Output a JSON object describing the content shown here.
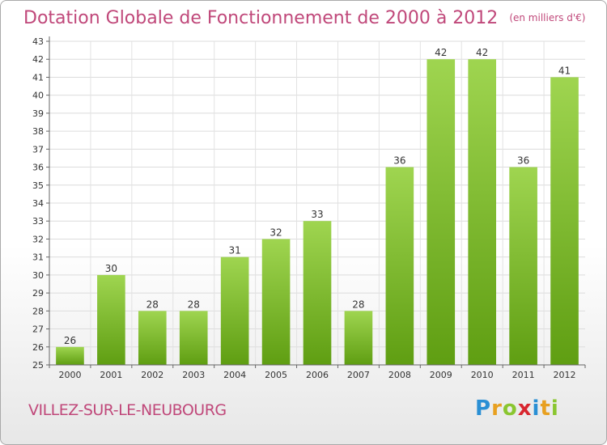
{
  "chart_data": {
    "type": "bar",
    "title": "Dotation Globale de Fonctionnement de 2000 à 2012",
    "subtitle": "(en milliers d'€)",
    "categories": [
      "2000",
      "2001",
      "2002",
      "2003",
      "2004",
      "2005",
      "2006",
      "2007",
      "2008",
      "2009",
      "2010",
      "2011",
      "2012"
    ],
    "values": [
      26,
      30,
      28,
      28,
      31,
      32,
      33,
      28,
      36,
      42,
      42,
      36,
      41
    ],
    "ylim": [
      25,
      43
    ],
    "yticks": [
      25,
      26,
      27,
      28,
      29,
      30,
      31,
      32,
      33,
      34,
      35,
      36,
      37,
      38,
      39,
      40,
      41,
      42,
      43
    ],
    "grid": true,
    "bar_color": "#7cbf2c"
  },
  "location": "VILLEZ-SUR-LE-NEUBOURG",
  "logo": {
    "text": "Proxiti"
  }
}
